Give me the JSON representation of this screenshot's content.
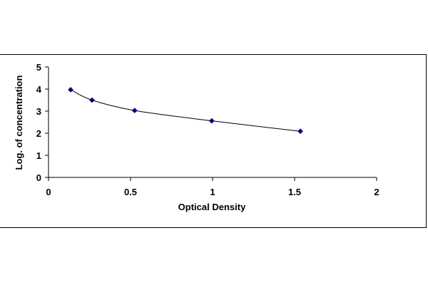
{
  "chart_data": {
    "type": "scatter",
    "title": "",
    "xlabel": "Optical Density",
    "ylabel": "Log. of concentration",
    "xlim": [
      0,
      2
    ],
    "ylim": [
      0,
      5
    ],
    "x_ticks": [
      0,
      0.5,
      1,
      1.5,
      2
    ],
    "x_tick_labels": [
      "0",
      "0.5",
      "1",
      "1.5",
      "2"
    ],
    "y_ticks": [
      0,
      1,
      2,
      3,
      4,
      5
    ],
    "y_tick_labels": [
      "0",
      "1",
      "2",
      "3",
      "4",
      "5"
    ],
    "grid": false,
    "legend": "none",
    "trendline": "smooth curve",
    "marker": "diamond",
    "series": [
      {
        "x": [
          0.135,
          0.265,
          0.525,
          0.995,
          1.535
        ],
        "y": [
          3.97,
          3.5,
          3.03,
          2.56,
          2.09
        ],
        "color": "#000080"
      }
    ]
  }
}
